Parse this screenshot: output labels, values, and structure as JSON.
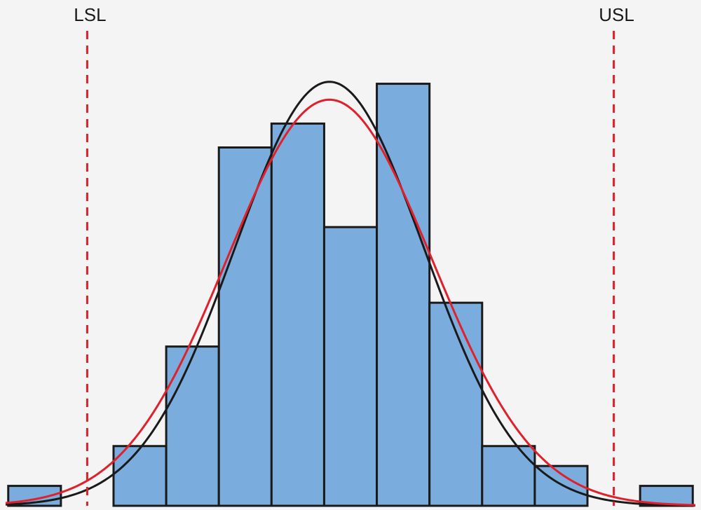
{
  "chart_data": {
    "type": "bar",
    "title": "",
    "xlabel": "",
    "ylabel": "",
    "bins": [
      {
        "x0": 0,
        "x1": 1,
        "count": 1
      },
      {
        "x0": 1,
        "x1": 2,
        "count": 0
      },
      {
        "x0": 2,
        "x1": 3,
        "count": 3
      },
      {
        "x0": 3,
        "x1": 4,
        "count": 8
      },
      {
        "x0": 4,
        "x1": 5,
        "count": 18
      },
      {
        "x0": 5,
        "x1": 6,
        "count": 19.2
      },
      {
        "x0": 6,
        "x1": 7,
        "count": 14
      },
      {
        "x0": 7,
        "x1": 8,
        "count": 21.2
      },
      {
        "x0": 8,
        "x1": 9,
        "count": 10.2
      },
      {
        "x0": 9,
        "x1": 10,
        "count": 3
      },
      {
        "x0": 10,
        "x1": 11,
        "count": 2
      },
      {
        "x0": 11,
        "x1": 12,
        "count": 0
      },
      {
        "x0": 12,
        "x1": 13,
        "count": 1
      }
    ],
    "xlim": [
      -0.05,
      13.05
    ],
    "ylim": [
      0,
      24
    ],
    "spec_limits": [
      {
        "label": "LSL",
        "x": 1.5
      },
      {
        "label": "USL",
        "x": 11.5
      }
    ],
    "curves": [
      {
        "kind": "normal-fit",
        "color": "#1a1a1a",
        "mean": 6.1,
        "sd": 1.8,
        "peak": 21.3
      },
      {
        "kind": "normal-fit",
        "color": "#e0202a",
        "mean": 6.1,
        "sd": 1.95,
        "peak": 20.4
      }
    ],
    "colors": {
      "bar_fill": "#7aaddd",
      "bar_stroke": "#1a1a1a",
      "spec_line": "#e0202a",
      "background": "#f4f4f4"
    }
  }
}
